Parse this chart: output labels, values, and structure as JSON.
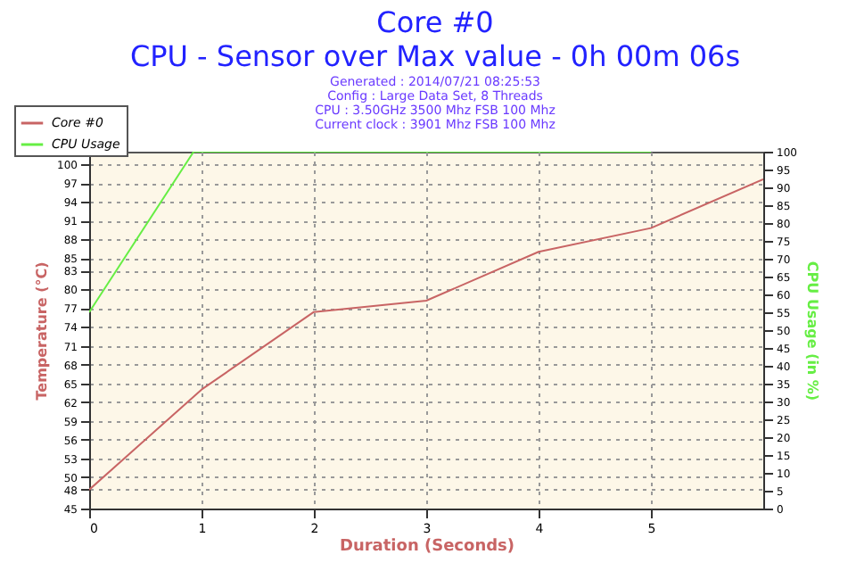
{
  "chart_data": {
    "type": "line",
    "title": "Core #0",
    "subtitle": "CPU - Sensor over Max value - 0h 00m 06s",
    "annotations": [
      "Generated : 2014/07/21 08:25:53",
      "Config : Large Data Set, 8 Threads",
      "CPU : 3.50GHz 3500 Mhz FSB 100 Mhz",
      "Current clock : 3901 Mhz FSB 100 Mhz"
    ],
    "xlabel": "Duration (Seconds)",
    "ylabel": "Temperature (°C)",
    "y2label": "CPU Usage (in %)",
    "xlim": [
      0,
      6
    ],
    "xticks": [
      0,
      1,
      2,
      3,
      4,
      5
    ],
    "ylim": [
      45,
      102
    ],
    "yticks": [
      45,
      48,
      50,
      53,
      56,
      59,
      62,
      65,
      68,
      71,
      74,
      77,
      80,
      83,
      85,
      88,
      91,
      94,
      97,
      100
    ],
    "y2lim": [
      0,
      100
    ],
    "y2ticks": [
      0,
      5,
      10,
      15,
      20,
      25,
      30,
      35,
      40,
      45,
      50,
      55,
      60,
      65,
      70,
      75,
      80,
      85,
      90,
      95,
      100
    ],
    "grid": true,
    "legend": "top left",
    "line_style": "solid",
    "marker": "none",
    "series": [
      {
        "name": "Core #0",
        "color": "#c86464",
        "x": [
          0,
          1,
          2,
          3,
          4,
          5,
          6
        ],
        "values": [
          48,
          64,
          76.4,
          78.2,
          86,
          89.8,
          97.6
        ]
      },
      {
        "name": "CPU Usage",
        "color": "#66ee44",
        "axis": "y2",
        "x": [
          0,
          0.93,
          5
        ],
        "values": [
          55,
          100,
          100
        ]
      }
    ]
  }
}
